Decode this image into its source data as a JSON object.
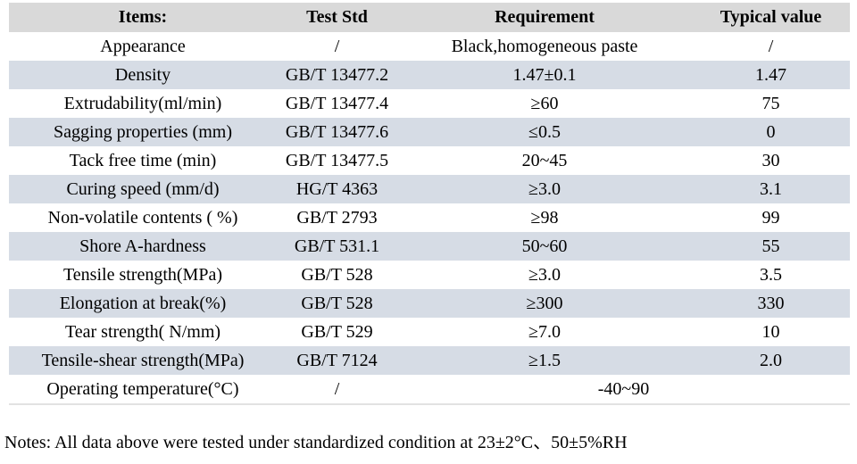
{
  "colors": {
    "header_bg": "#d9d9d9",
    "stripe_bg": "#d6dce5",
    "row_bg": "#ffffff",
    "text": "#000000",
    "table_bottom_border": "#e2e2e2"
  },
  "table": {
    "headers": [
      "Items:",
      "Test Std",
      "Requirement",
      "Typical value"
    ],
    "rows": [
      {
        "item": "Appearance",
        "test_std": "/",
        "requirement": "Black,homogeneous paste",
        "typical_value": "/"
      },
      {
        "item": "Density",
        "test_std": "GB/T 13477.2",
        "requirement": "1.47±0.1",
        "typical_value": "1.47"
      },
      {
        "item": "Extrudability(ml/min)",
        "test_std": "GB/T 13477.4",
        "requirement": "≥60",
        "typical_value": "75"
      },
      {
        "item": "Sagging properties (mm)",
        "test_std": "GB/T 13477.6",
        "requirement": "≤0.5",
        "typical_value": "0"
      },
      {
        "item": "Tack free time (min)",
        "test_std": "GB/T 13477.5",
        "requirement": "20~45",
        "typical_value": "30"
      },
      {
        "item": "Curing speed (mm/d)",
        "test_std": "HG/T 4363",
        "requirement": "≥3.0",
        "typical_value": "3.1"
      },
      {
        "item": "Non-volatile contents ( %)",
        "test_std": "GB/T 2793",
        "requirement": "≥98",
        "typical_value": "99"
      },
      {
        "item": "Shore A-hardness",
        "test_std": "GB/T 531.1",
        "requirement": "50~60",
        "typical_value": "55"
      },
      {
        "item": "Tensile strength(MPa)",
        "test_std": "GB/T 528",
        "requirement": "≥3.0",
        "typical_value": "3.5"
      },
      {
        "item": "Elongation at break(%)",
        "test_std": "GB/T 528",
        "requirement": "≥300",
        "typical_value": "330"
      },
      {
        "item": "Tear strength( N/mm)",
        "test_std": "GB/T 529",
        "requirement": "≥7.0",
        "typical_value": "10"
      },
      {
        "item": "Tensile-shear strength(MPa)",
        "test_std": "GB/T 7124",
        "requirement": "≥1.5",
        "typical_value": "2.0"
      },
      {
        "item": "Operating temperature(°C)",
        "test_std": "/",
        "requirement": "-40~90",
        "typical_value": null
      }
    ]
  },
  "notes": "Notes: All data above were tested under standardized condition at 23±2°C、50±5%RH"
}
